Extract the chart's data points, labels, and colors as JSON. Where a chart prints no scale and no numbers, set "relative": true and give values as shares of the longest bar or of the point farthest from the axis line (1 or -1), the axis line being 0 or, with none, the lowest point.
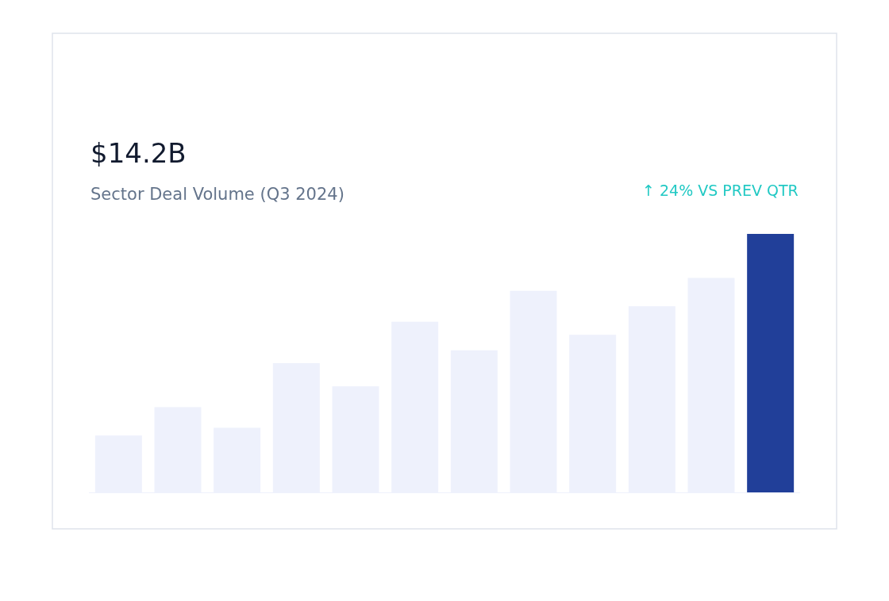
{
  "chart_data": {
    "type": "bar",
    "relative": true,
    "title": "$14.2B",
    "subtitle": "Sector Deal Volume (Q3 2024)",
    "annotations": [
      "↑ 24% VS PREV QTR"
    ],
    "categories": [
      null,
      null,
      null,
      null,
      null,
      null,
      null,
      null,
      null,
      null,
      null,
      null
    ],
    "values": [
      0.22,
      0.33,
      0.25,
      0.5,
      0.41,
      0.66,
      0.55,
      0.78,
      0.61,
      0.72,
      0.83,
      1
    ],
    "colors": [
      "#eef1fc",
      "#eef1fc",
      "#eef1fc",
      "#eef1fc",
      "#eef1fc",
      "#eef1fc",
      "#eef1fc",
      "#eef1fc",
      "#eef1fc",
      "#eef1fc",
      "#eef1fc",
      "#213f99"
    ],
    "legend": false
  }
}
